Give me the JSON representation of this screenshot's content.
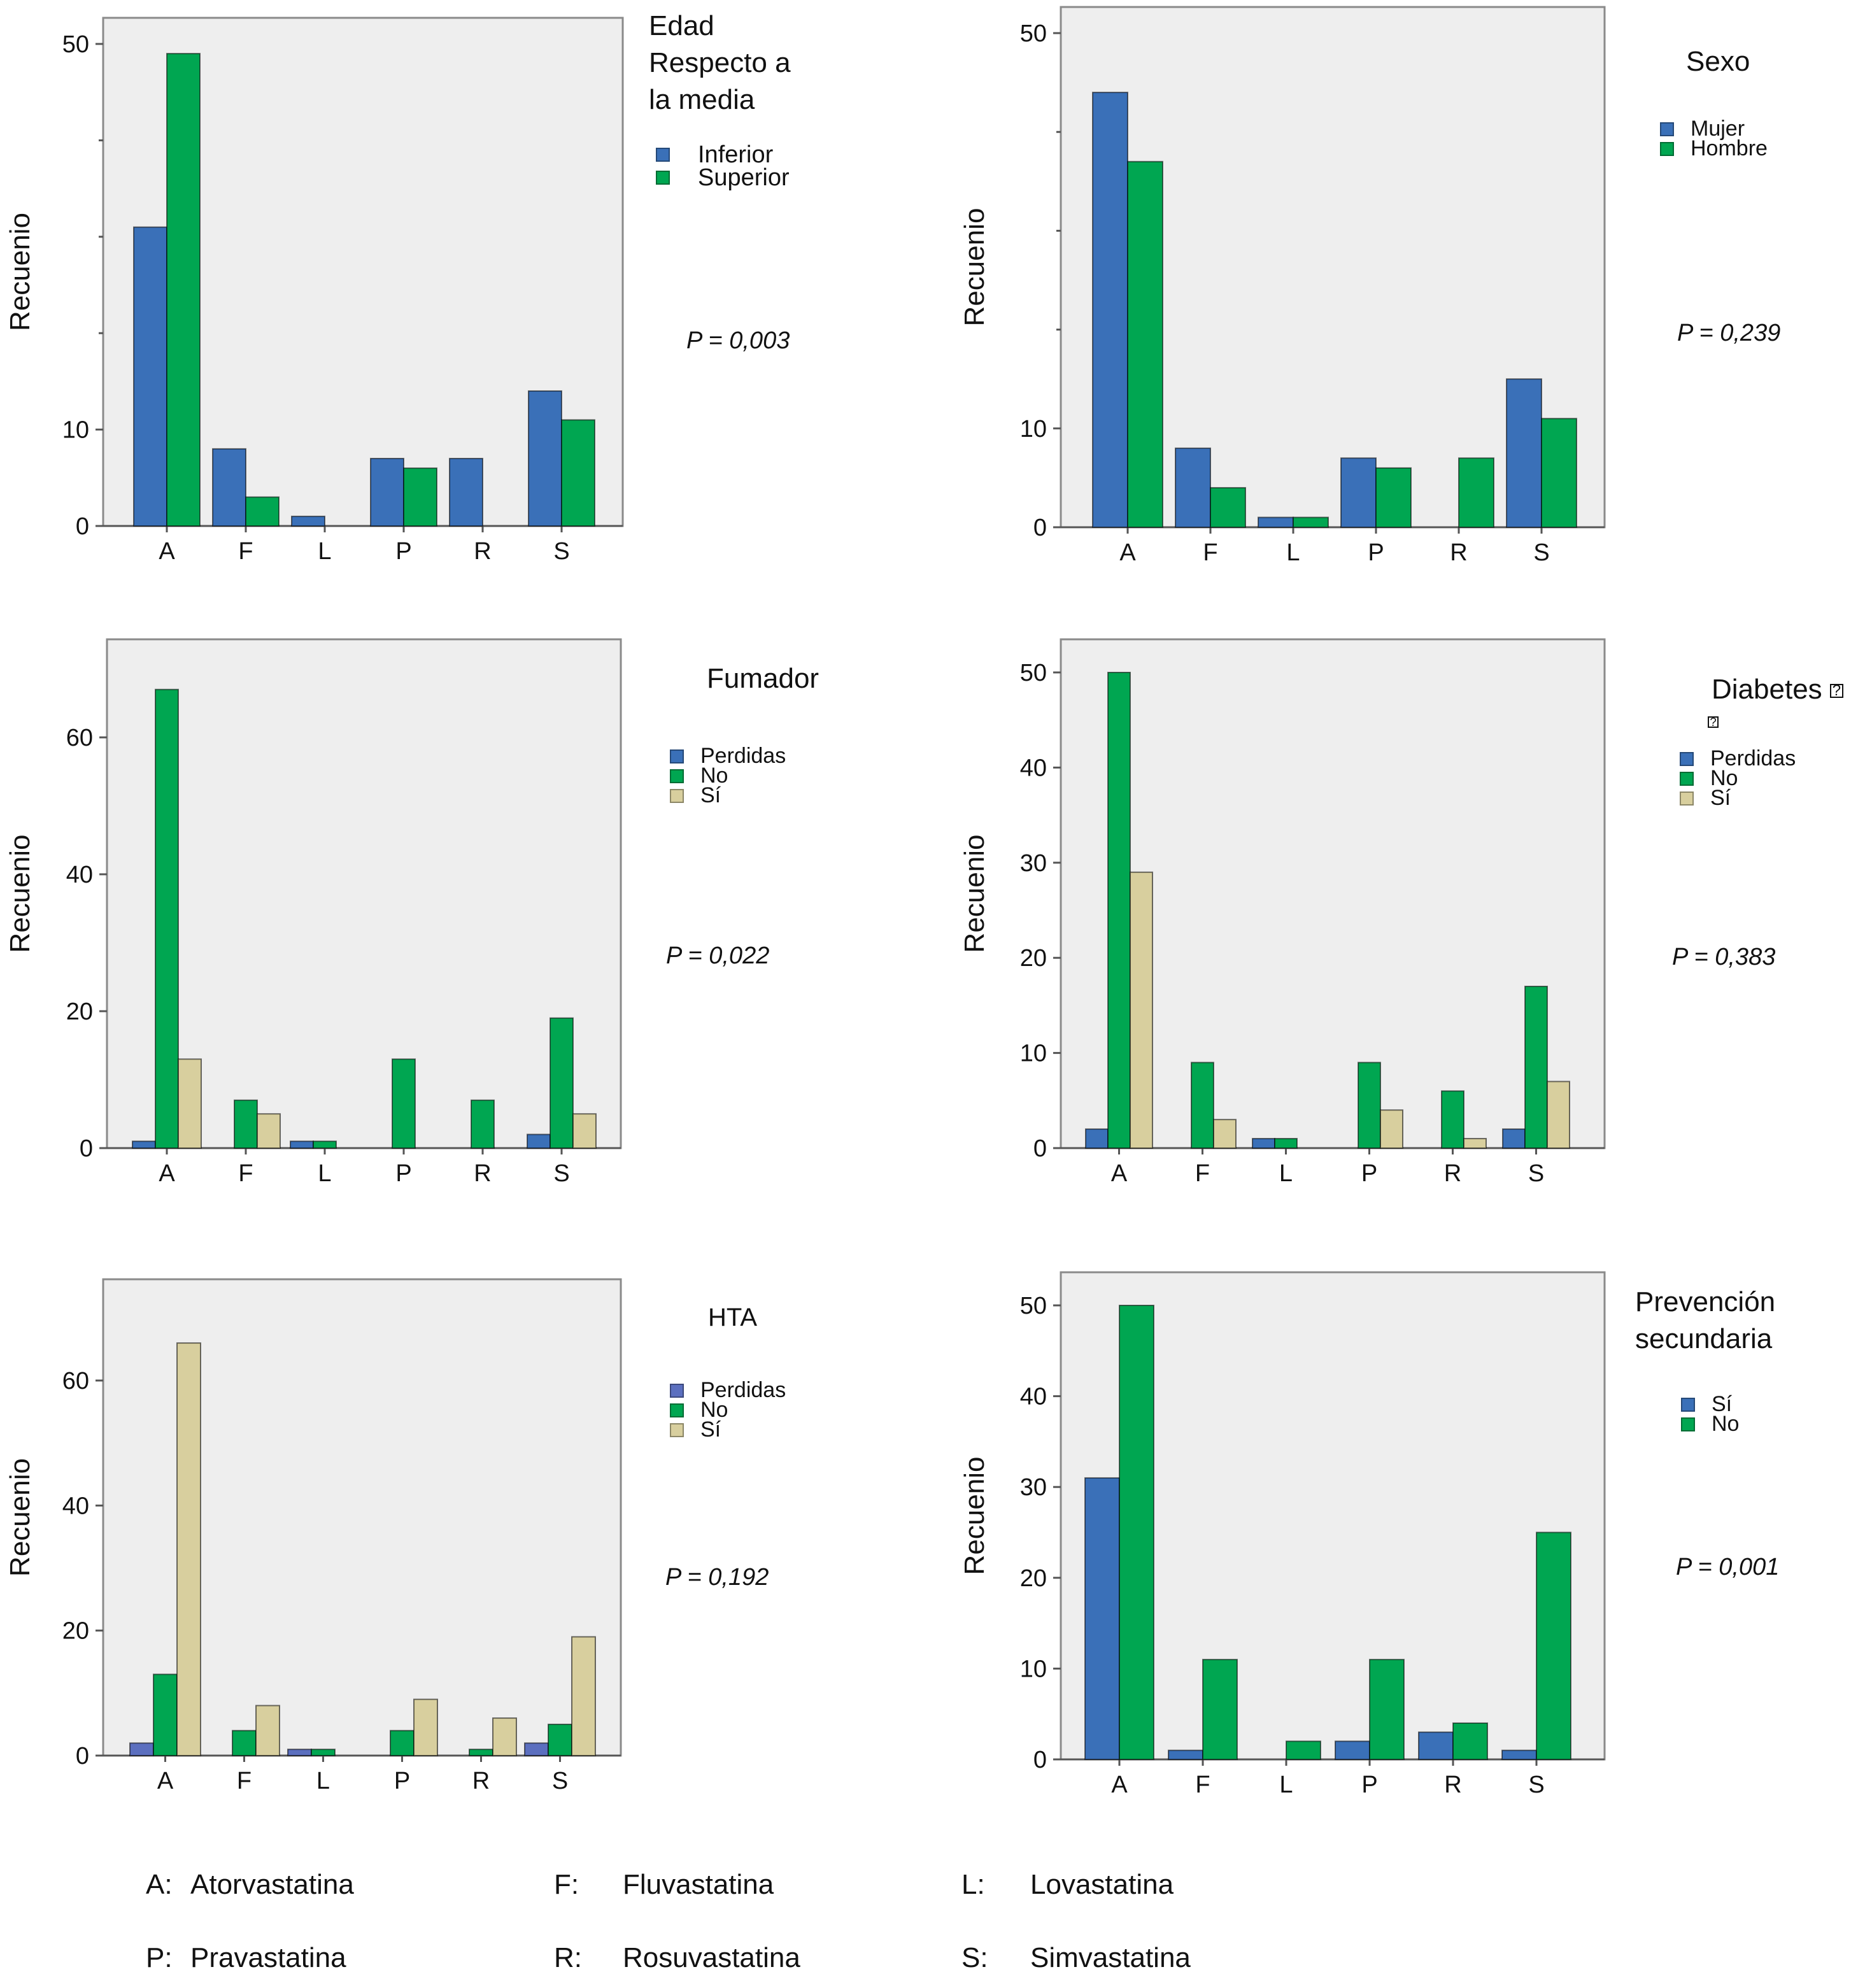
{
  "colors": {
    "blue": "#3a70b8",
    "blue_hta": "#5b6fbf",
    "green": "#00a651",
    "beige": "#d8cf9e",
    "plot_bg": "#eeeeee",
    "axis": "#8a8a8a"
  },
  "chart_data": [
    {
      "type": "bar",
      "title": "Edad Respecto a la media",
      "legend_title_lines": [
        "Edad",
        "Respecto a",
        "la media"
      ],
      "ylabel": "Recuenio",
      "xlabel": "",
      "categories": [
        "A",
        "F",
        "L",
        "P",
        "R",
        "S"
      ],
      "yticks": [
        0,
        10,
        50
      ],
      "minor_ticks": [
        20,
        30,
        40
      ],
      "ylim": [
        0,
        52
      ],
      "series": [
        {
          "name": "Inferior",
          "color": "blue",
          "values": [
            31,
            8,
            1,
            7,
            7,
            14
          ]
        },
        {
          "name": "Superior",
          "color": "green",
          "values": [
            49,
            3,
            0,
            6,
            0,
            11
          ]
        }
      ],
      "legend_position": "right",
      "p_value": "P = 0,003"
    },
    {
      "type": "bar",
      "title": "Sexo",
      "legend_title_lines": [
        "Sexo"
      ],
      "ylabel": "Recuenio",
      "xlabel": "",
      "categories": [
        "A",
        "F",
        "L",
        "P",
        "R",
        "S"
      ],
      "yticks": [
        0,
        10,
        50
      ],
      "minor_ticks": [
        20,
        30,
        40
      ],
      "ylim": [
        0,
        53
      ],
      "series": [
        {
          "name": "Mujer",
          "color": "blue",
          "values": [
            44,
            8,
            1,
            7,
            0,
            15
          ]
        },
        {
          "name": "Hombre",
          "color": "green",
          "values": [
            37,
            4,
            1,
            6,
            7,
            11
          ]
        }
      ],
      "legend_position": "right",
      "p_value": "P = 0,239"
    },
    {
      "type": "bar",
      "title": "Fumador",
      "legend_title_lines": [
        "Fumador"
      ],
      "ylabel": "Recuenio",
      "xlabel": "",
      "categories": [
        "A",
        "F",
        "L",
        "P",
        "R",
        "S"
      ],
      "yticks": [
        0,
        20,
        40,
        60
      ],
      "minor_ticks": [],
      "ylim": [
        0,
        74
      ],
      "series": [
        {
          "name": "Perdidas",
          "color": "blue",
          "values": [
            1,
            0,
            1,
            0,
            0,
            2
          ]
        },
        {
          "name": "No",
          "color": "green",
          "values": [
            67,
            7,
            1,
            13,
            7,
            19
          ]
        },
        {
          "name": "Sí",
          "color": "beige",
          "values": [
            13,
            5,
            0,
            0,
            0,
            5
          ]
        }
      ],
      "legend_position": "right",
      "p_value": "P = 0,022"
    },
    {
      "type": "bar",
      "title": "Diabetes",
      "legend_title_lines": [
        "Diabetes"
      ],
      "title_has_missing_glyphs": true,
      "ylabel": "Recuenio",
      "xlabel": "",
      "categories": [
        "A",
        "F",
        "L",
        "P",
        "R",
        "S"
      ],
      "yticks": [
        0,
        10,
        20,
        30,
        40,
        50
      ],
      "minor_ticks": [],
      "ylim": [
        0,
        53
      ],
      "series": [
        {
          "name": "Perdidas",
          "color": "blue",
          "values": [
            2,
            0,
            1,
            0,
            0,
            2
          ]
        },
        {
          "name": "No",
          "color": "green",
          "values": [
            50,
            9,
            1,
            9,
            6,
            17
          ]
        },
        {
          "name": "Sí",
          "color": "beige",
          "values": [
            29,
            3,
            0,
            4,
            1,
            7
          ]
        }
      ],
      "legend_position": "right",
      "p_value": "P = 0,383"
    },
    {
      "type": "bar",
      "title": "HTA",
      "legend_title_lines": [
        "HTA"
      ],
      "ylabel": "Recuenio",
      "xlabel": "",
      "categories": [
        "A",
        "F",
        "L",
        "P",
        "R",
        "S"
      ],
      "yticks": [
        0,
        20,
        40,
        60
      ],
      "minor_ticks": [],
      "ylim": [
        0,
        74
      ],
      "series": [
        {
          "name": "Perdidas",
          "color": "blue_hta",
          "values": [
            2,
            0,
            1,
            0,
            0,
            2
          ]
        },
        {
          "name": "No",
          "color": "green",
          "values": [
            13,
            4,
            1,
            4,
            1,
            5
          ]
        },
        {
          "name": "Sí",
          "color": "beige",
          "values": [
            66,
            8,
            0,
            9,
            6,
            19
          ]
        }
      ],
      "legend_position": "right",
      "p_value": "P = 0,192"
    },
    {
      "type": "bar",
      "title": "Prevención secundaria",
      "legend_title_lines": [
        "Prevención",
        "secundaria"
      ],
      "ylabel": "Recuenio",
      "xlabel": "",
      "categories": [
        "A",
        "F",
        "L",
        "P",
        "R",
        "S"
      ],
      "yticks": [
        0,
        10,
        20,
        30,
        40,
        50
      ],
      "minor_ticks": [],
      "ylim": [
        0,
        53
      ],
      "series": [
        {
          "name": "Sí",
          "color": "blue",
          "values": [
            31,
            1,
            0,
            2,
            3,
            1
          ]
        },
        {
          "name": "No",
          "color": "green",
          "values": [
            50,
            11,
            2,
            11,
            4,
            25
          ]
        }
      ],
      "legend_position": "right",
      "p_value": "P = 0,001"
    }
  ],
  "footer_key": [
    {
      "code": "A:",
      "name": "Atorvastatina"
    },
    {
      "code": "F:",
      "name": "Fluvastatina"
    },
    {
      "code": "L:",
      "name": "Lovastatina"
    },
    {
      "code": "P:",
      "name": "Pravastatina"
    },
    {
      "code": "R:",
      "name": "Rosuvastatina"
    },
    {
      "code": "S:",
      "name": "Simvastatina"
    }
  ]
}
